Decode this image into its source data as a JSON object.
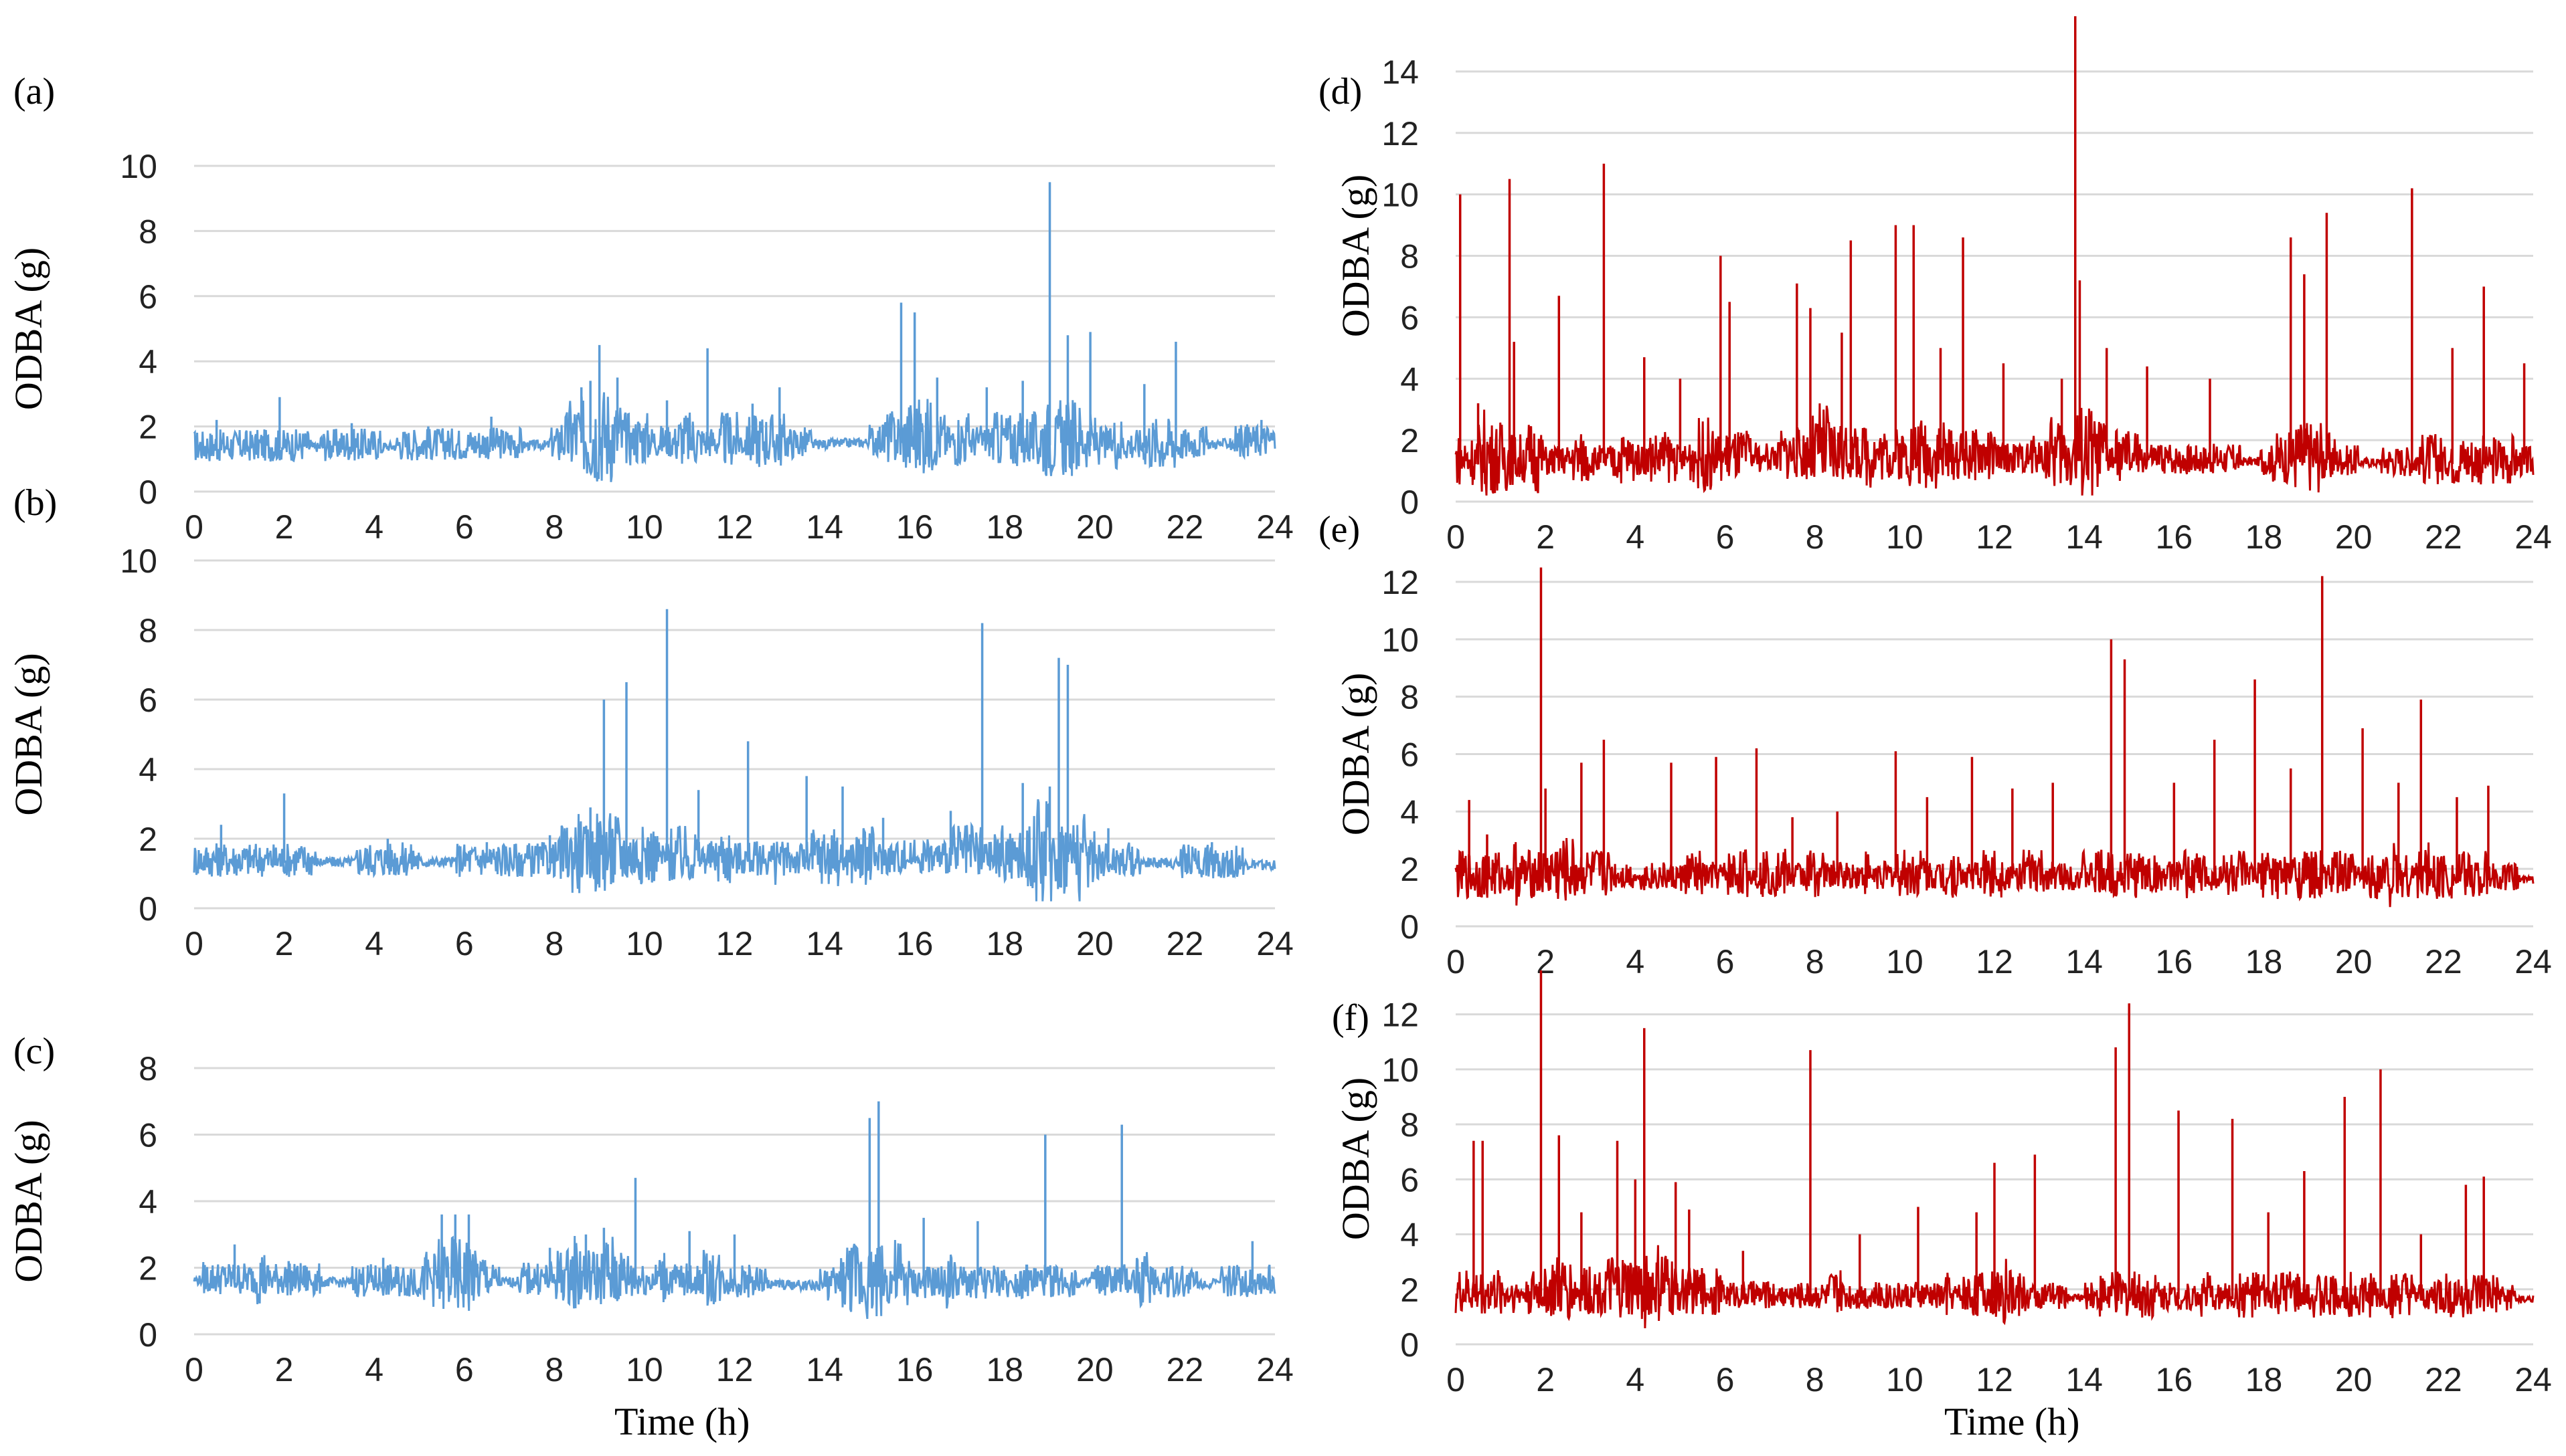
{
  "figure": {
    "xlabel_left": "Time (h)",
    "xlabel_right": "Time (h)"
  },
  "colors": {
    "blue": "#5b9bd5",
    "red": "#c00000",
    "grid": "#d9d9d9"
  },
  "chart_data": [
    {
      "panel": "(a)",
      "type": "line",
      "ylabel": "ODBA (g)",
      "ylim": [
        0,
        10
      ],
      "yticks": [
        0,
        2,
        4,
        6,
        8,
        10
      ],
      "xlim": [
        0,
        24
      ],
      "xticks": [
        0,
        2,
        4,
        6,
        8,
        10,
        12,
        14,
        16,
        18,
        20,
        22,
        24
      ],
      "grid": true,
      "color": "blue",
      "series": [
        {
          "x": [
            0,
            8,
            8.3,
            13.6,
            15.2,
            20.1,
            21.8,
            22.1,
            24
          ],
          "y": [
            1.3,
            1.4,
            1.5,
            1.4,
            1.5,
            1.4,
            1.3,
            1.4,
            1.5
          ]
        }
      ],
      "peaks": [
        {
          "x": 0.5,
          "y": 2.2
        },
        {
          "x": 1.9,
          "y": 2.9
        },
        {
          "x": 3.5,
          "y": 2.1
        },
        {
          "x": 5.2,
          "y": 2.0
        },
        {
          "x": 6.6,
          "y": 2.3
        },
        {
          "x": 8.6,
          "y": 3.2
        },
        {
          "x": 8.8,
          "y": 3.4
        },
        {
          "x": 9.0,
          "y": 4.5
        },
        {
          "x": 9.4,
          "y": 3.5
        },
        {
          "x": 10.5,
          "y": 2.8
        },
        {
          "x": 11.4,
          "y": 4.4
        },
        {
          "x": 12.4,
          "y": 2.7
        },
        {
          "x": 13.0,
          "y": 3.2
        },
        {
          "x": 15.7,
          "y": 5.8
        },
        {
          "x": 16.0,
          "y": 5.5
        },
        {
          "x": 16.5,
          "y": 3.5
        },
        {
          "x": 17.6,
          "y": 3.2
        },
        {
          "x": 18.4,
          "y": 3.4
        },
        {
          "x": 19.0,
          "y": 9.5
        },
        {
          "x": 19.4,
          "y": 4.8
        },
        {
          "x": 19.9,
          "y": 4.9
        },
        {
          "x": 21.1,
          "y": 3.3
        },
        {
          "x": 21.8,
          "y": 4.6
        },
        {
          "x": 23.7,
          "y": 2.2
        }
      ]
    },
    {
      "panel": "(b)",
      "type": "line",
      "ylabel": "ODBA (g)",
      "ylim": [
        0,
        10
      ],
      "yticks": [
        0,
        2,
        4,
        6,
        8,
        10
      ],
      "xlim": [
        0,
        24
      ],
      "xticks": [
        0,
        2,
        4,
        6,
        8,
        10,
        12,
        14,
        16,
        18,
        20,
        22,
        24
      ],
      "grid": true,
      "color": "blue",
      "series": [
        {
          "x": [
            0,
            8,
            8.1,
            14.5,
            16.3,
            20.5,
            24
          ],
          "y": [
            1.3,
            1.3,
            1.4,
            1.3,
            1.4,
            1.3,
            1.2
          ]
        }
      ],
      "peaks": [
        {
          "x": 0.6,
          "y": 2.4
        },
        {
          "x": 2.0,
          "y": 3.3
        },
        {
          "x": 4.3,
          "y": 2.0
        },
        {
          "x": 6.5,
          "y": 1.9
        },
        {
          "x": 7.9,
          "y": 2.1
        },
        {
          "x": 8.8,
          "y": 2.9
        },
        {
          "x": 9.1,
          "y": 6.0
        },
        {
          "x": 9.6,
          "y": 6.5
        },
        {
          "x": 10.5,
          "y": 8.6
        },
        {
          "x": 11.2,
          "y": 3.4
        },
        {
          "x": 12.3,
          "y": 4.8
        },
        {
          "x": 13.6,
          "y": 3.8
        },
        {
          "x": 14.4,
          "y": 3.5
        },
        {
          "x": 15.3,
          "y": 2.6
        },
        {
          "x": 16.8,
          "y": 2.8
        },
        {
          "x": 17.5,
          "y": 8.2
        },
        {
          "x": 18.4,
          "y": 3.6
        },
        {
          "x": 19.0,
          "y": 3.5
        },
        {
          "x": 19.2,
          "y": 7.2
        },
        {
          "x": 19.4,
          "y": 7.0
        },
        {
          "x": 20.3,
          "y": 2.3
        },
        {
          "x": 22.6,
          "y": 1.9
        }
      ]
    },
    {
      "panel": "(c)",
      "type": "line",
      "ylabel": "ODBA (g)",
      "ylim": [
        0,
        8
      ],
      "yticks": [
        0,
        2,
        4,
        6,
        8
      ],
      "xlim": [
        0,
        24
      ],
      "xticks": [
        0,
        2,
        4,
        6,
        8,
        10,
        12,
        14,
        16,
        18,
        20,
        22,
        24
      ],
      "grid": true,
      "color": "blue",
      "series": [
        {
          "x": [
            0,
            4.5,
            6.1,
            8.1,
            12.4,
            14.4,
            19.0,
            20.6,
            24
          ],
          "y": [
            1.6,
            1.5,
            1.5,
            1.6,
            1.5,
            1.4,
            1.5,
            1.5,
            1.5
          ]
        }
      ],
      "peaks": [
        {
          "x": 0.9,
          "y": 2.7
        },
        {
          "x": 2.1,
          "y": 2.2
        },
        {
          "x": 4.2,
          "y": 2.3
        },
        {
          "x": 5.5,
          "y": 3.6
        },
        {
          "x": 5.8,
          "y": 3.6
        },
        {
          "x": 6.1,
          "y": 3.6
        },
        {
          "x": 7.9,
          "y": 2.6
        },
        {
          "x": 8.7,
          "y": 3.0
        },
        {
          "x": 9.1,
          "y": 3.2
        },
        {
          "x": 9.8,
          "y": 4.7
        },
        {
          "x": 11.0,
          "y": 3.1
        },
        {
          "x": 12.0,
          "y": 3.0
        },
        {
          "x": 14.6,
          "y": 2.6
        },
        {
          "x": 15.0,
          "y": 6.5
        },
        {
          "x": 15.2,
          "y": 7.0
        },
        {
          "x": 16.2,
          "y": 3.5
        },
        {
          "x": 17.4,
          "y": 3.4
        },
        {
          "x": 18.9,
          "y": 6.0
        },
        {
          "x": 20.6,
          "y": 6.3
        },
        {
          "x": 21.6,
          "y": 2.0
        },
        {
          "x": 23.5,
          "y": 2.8
        }
      ]
    },
    {
      "panel": "(d)",
      "type": "line",
      "ylabel": "ODBA (g)",
      "ylim": [
        0,
        16
      ],
      "yticks": [
        0,
        2,
        4,
        6,
        8,
        10,
        12,
        14
      ],
      "xlim": [
        0,
        24
      ],
      "xticks": [
        0,
        2,
        4,
        6,
        8,
        10,
        12,
        14,
        16,
        18,
        20,
        22,
        24
      ],
      "grid": true,
      "color": "red",
      "series": [
        {
          "x": [
            0,
            6,
            7.3,
            24
          ],
          "y": [
            1.2,
            1.3,
            1.4,
            1.2
          ]
        }
      ],
      "peaks": [
        {
          "x": 0.1,
          "y": 10.0
        },
        {
          "x": 0.5,
          "y": 3.2
        },
        {
          "x": 1.2,
          "y": 10.5
        },
        {
          "x": 1.3,
          "y": 5.2
        },
        {
          "x": 2.3,
          "y": 6.7
        },
        {
          "x": 3.3,
          "y": 11.0
        },
        {
          "x": 4.2,
          "y": 4.7
        },
        {
          "x": 5.0,
          "y": 4.0
        },
        {
          "x": 5.9,
          "y": 8.0
        },
        {
          "x": 6.1,
          "y": 6.5
        },
        {
          "x": 7.6,
          "y": 7.1
        },
        {
          "x": 7.9,
          "y": 6.3
        },
        {
          "x": 8.6,
          "y": 5.5
        },
        {
          "x": 8.8,
          "y": 8.5
        },
        {
          "x": 9.8,
          "y": 9.0
        },
        {
          "x": 10.2,
          "y": 9.0
        },
        {
          "x": 10.8,
          "y": 5.0
        },
        {
          "x": 11.3,
          "y": 8.6
        },
        {
          "x": 12.2,
          "y": 4.5
        },
        {
          "x": 13.5,
          "y": 4.0
        },
        {
          "x": 13.8,
          "y": 15.8
        },
        {
          "x": 13.9,
          "y": 7.2
        },
        {
          "x": 14.5,
          "y": 5.0
        },
        {
          "x": 15.4,
          "y": 4.4
        },
        {
          "x": 16.8,
          "y": 4.0
        },
        {
          "x": 18.6,
          "y": 8.6
        },
        {
          "x": 18.9,
          "y": 7.4
        },
        {
          "x": 19.4,
          "y": 9.4
        },
        {
          "x": 21.3,
          "y": 10.2
        },
        {
          "x": 22.2,
          "y": 5.0
        },
        {
          "x": 22.9,
          "y": 7.0
        },
        {
          "x": 23.8,
          "y": 4.5
        }
      ]
    },
    {
      "panel": "(e)",
      "type": "line",
      "ylabel": "ODBA (g)",
      "ylim": [
        0,
        12
      ],
      "yticks": [
        0,
        2,
        4,
        6,
        8,
        10,
        12
      ],
      "xlim": [
        0,
        24
      ],
      "xticks": [
        0,
        2,
        4,
        6,
        8,
        10,
        12,
        14,
        16,
        18,
        20,
        22,
        24
      ],
      "grid": true,
      "color": "red",
      "series": [
        {
          "x": [
            0,
            3.5,
            5,
            6.5,
            24
          ],
          "y": [
            1.6,
            1.7,
            1.6,
            1.7,
            1.6
          ]
        }
      ],
      "peaks": [
        {
          "x": 0.3,
          "y": 4.4
        },
        {
          "x": 0.7,
          "y": 3.2
        },
        {
          "x": 1.9,
          "y": 12.5
        },
        {
          "x": 2.0,
          "y": 4.8
        },
        {
          "x": 2.8,
          "y": 5.7
        },
        {
          "x": 3.3,
          "y": 6.5
        },
        {
          "x": 4.8,
          "y": 5.7
        },
        {
          "x": 5.8,
          "y": 5.9
        },
        {
          "x": 6.7,
          "y": 6.2
        },
        {
          "x": 7.5,
          "y": 3.8
        },
        {
          "x": 8.5,
          "y": 4.0
        },
        {
          "x": 9.8,
          "y": 6.1
        },
        {
          "x": 10.5,
          "y": 4.5
        },
        {
          "x": 11.5,
          "y": 5.9
        },
        {
          "x": 12.4,
          "y": 4.8
        },
        {
          "x": 13.3,
          "y": 5.0
        },
        {
          "x": 14.6,
          "y": 10.0
        },
        {
          "x": 14.9,
          "y": 9.3
        },
        {
          "x": 16.0,
          "y": 5.0
        },
        {
          "x": 16.9,
          "y": 6.5
        },
        {
          "x": 17.8,
          "y": 8.6
        },
        {
          "x": 18.6,
          "y": 5.5
        },
        {
          "x": 19.3,
          "y": 12.2
        },
        {
          "x": 20.2,
          "y": 6.9
        },
        {
          "x": 21.0,
          "y": 5.0
        },
        {
          "x": 21.5,
          "y": 7.9
        },
        {
          "x": 22.3,
          "y": 4.5
        },
        {
          "x": 23.0,
          "y": 4.9
        }
      ]
    },
    {
      "panel": "(f)",
      "type": "line",
      "ylabel": "ODBA (g)",
      "ylim": [
        0,
        13.5
      ],
      "yticks": [
        0,
        2,
        4,
        6,
        8,
        10,
        12
      ],
      "xlim": [
        0,
        24
      ],
      "xticks": [
        0,
        2,
        4,
        6,
        8,
        10,
        12,
        14,
        16,
        18,
        20,
        22,
        24
      ],
      "grid": true,
      "color": "red",
      "series": [
        {
          "x": [
            0,
            4.8,
            6.8,
            24
          ],
          "y": [
            1.7,
            1.8,
            1.7,
            1.6
          ]
        }
      ],
      "peaks": [
        {
          "x": 0.4,
          "y": 7.4
        },
        {
          "x": 0.6,
          "y": 7.4
        },
        {
          "x": 1.9,
          "y": 13.6
        },
        {
          "x": 2.3,
          "y": 7.6
        },
        {
          "x": 2.8,
          "y": 4.8
        },
        {
          "x": 3.6,
          "y": 7.4
        },
        {
          "x": 4.0,
          "y": 6.0
        },
        {
          "x": 4.2,
          "y": 11.5
        },
        {
          "x": 4.9,
          "y": 5.9
        },
        {
          "x": 5.2,
          "y": 4.9
        },
        {
          "x": 6.4,
          "y": 3.4
        },
        {
          "x": 7.9,
          "y": 10.7
        },
        {
          "x": 9.0,
          "y": 4.0
        },
        {
          "x": 10.3,
          "y": 5.0
        },
        {
          "x": 11.6,
          "y": 4.8
        },
        {
          "x": 12.0,
          "y": 6.6
        },
        {
          "x": 12.9,
          "y": 6.9
        },
        {
          "x": 14.7,
          "y": 10.8
        },
        {
          "x": 15.0,
          "y": 12.4
        },
        {
          "x": 16.1,
          "y": 8.5
        },
        {
          "x": 17.3,
          "y": 8.2
        },
        {
          "x": 18.1,
          "y": 4.8
        },
        {
          "x": 18.9,
          "y": 6.3
        },
        {
          "x": 19.8,
          "y": 9.0
        },
        {
          "x": 20.6,
          "y": 10.0
        },
        {
          "x": 21.5,
          "y": 4.0
        },
        {
          "x": 22.5,
          "y": 5.8
        },
        {
          "x": 22.9,
          "y": 6.1
        }
      ]
    }
  ]
}
